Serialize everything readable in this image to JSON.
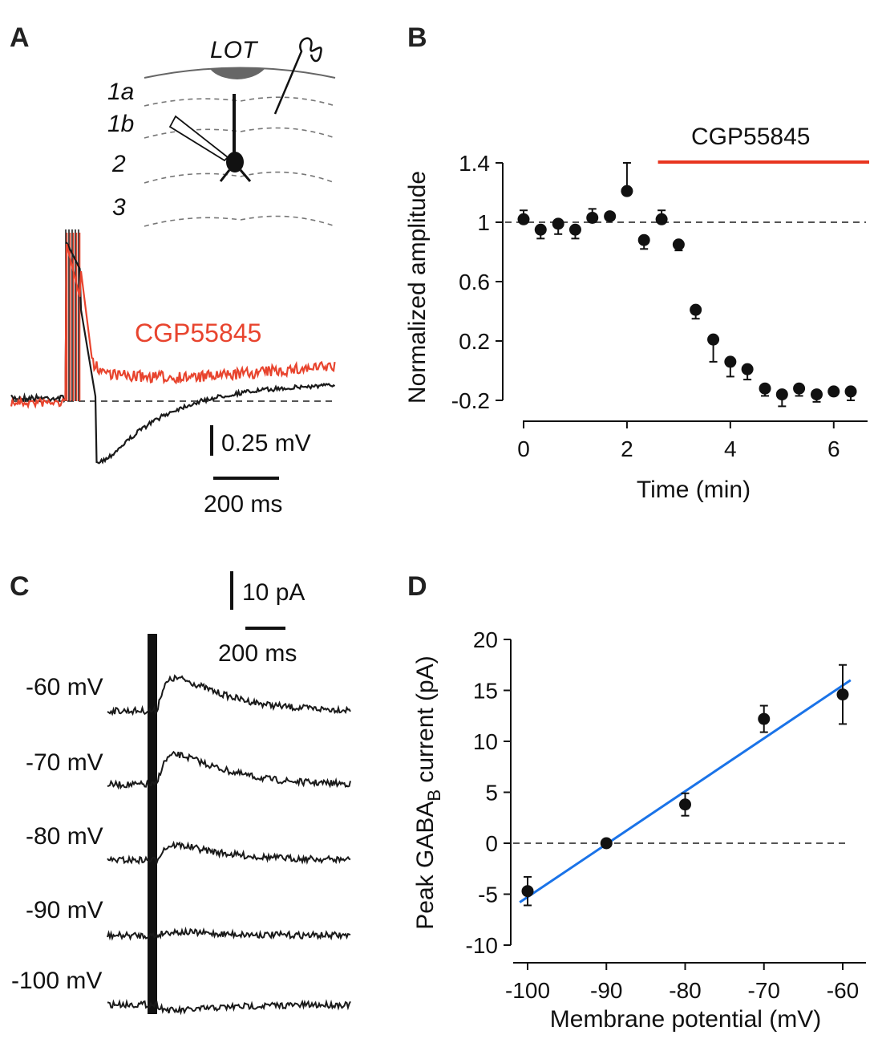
{
  "panels": {
    "a": {
      "letter": "A",
      "layers": {
        "lot": "LOT",
        "l1a": "1a",
        "l1b": "1b",
        "l2": "2",
        "l3": "3"
      },
      "drug_label": "CGP55845",
      "scale_voltage": "0.25 mV",
      "scale_time": "200 ms",
      "colors": {
        "control": "#1a1a1a",
        "drug": "#e8442e"
      }
    },
    "b": {
      "letter": "B",
      "drug_bar_label": "CGP55845",
      "drug_color": "#e8351f"
    },
    "c": {
      "letter": "C",
      "scale_current": "10 pA",
      "scale_time": "200 ms",
      "trace_labels": [
        "-60 mV",
        "-70 mV",
        "-80 mV",
        "-90 mV",
        "-100 mV"
      ]
    },
    "d": {
      "letter": "D",
      "fit_color": "#1a73e8"
    }
  },
  "chart_data": [
    {
      "panel": "B",
      "type": "scatter",
      "xlabel": "Time (min)",
      "ylabel": "Normalized amplitude",
      "xlim": [
        0,
        6.5
      ],
      "ylim": [
        -0.2,
        1.4
      ],
      "xticks": [
        0,
        2,
        4,
        6
      ],
      "xtick_labels": [
        "0",
        "2",
        "4",
        "6"
      ],
      "yticks": [
        -0.2,
        0.2,
        0.6,
        1,
        1.4
      ],
      "ytick_labels": [
        "-0.2",
        "0.2",
        "0.6",
        "1",
        "1.4"
      ],
      "reference_line": 1.0,
      "drug_application_start_min": 2.6,
      "x": [
        0,
        0.33,
        0.67,
        1.0,
        1.33,
        1.67,
        2.0,
        2.33,
        2.67,
        3.0,
        3.33,
        3.67,
        4.0,
        4.33,
        4.67,
        5.0,
        5.33,
        5.67,
        6.0,
        6.33
      ],
      "y": [
        1.02,
        0.95,
        0.99,
        0.95,
        1.03,
        1.04,
        1.21,
        0.88,
        1.02,
        0.85,
        0.41,
        0.21,
        0.06,
        0.01,
        -0.12,
        -0.16,
        -0.12,
        -0.16,
        -0.14,
        -0.14
      ],
      "err": [
        0.06,
        0.06,
        0.07,
        0.06,
        0.06,
        0.02,
        0.19,
        0.06,
        0.06,
        0.04,
        0.06,
        0.15,
        0.1,
        0.07,
        0.05,
        0.08,
        0.05,
        0.05,
        0.02,
        0.06
      ]
    },
    {
      "panel": "D",
      "type": "scatter",
      "xlabel": "Membrane potential (mV)",
      "ylabel_main": "Peak GABA",
      "ylabel_sub": "B",
      "ylabel_tail": " current (pA)",
      "xlim": [
        -102,
        -58
      ],
      "ylim": [
        -10,
        20
      ],
      "xticks": [
        -100,
        -90,
        -80,
        -70,
        -60
      ],
      "xtick_labels": [
        "-100",
        "-90",
        "-80",
        "-70",
        "-60"
      ],
      "yticks": [
        -10,
        -5,
        0,
        5,
        10,
        15,
        20
      ],
      "ytick_labels": [
        "-10",
        "-5",
        "0",
        "5",
        "10",
        "15",
        "20"
      ],
      "reference_line": 0,
      "x": [
        -100,
        -90,
        -80,
        -70,
        -60
      ],
      "y": [
        -4.7,
        0.0,
        3.8,
        12.2,
        14.6
      ],
      "err": [
        1.4,
        0.2,
        1.1,
        1.3,
        2.9
      ],
      "fit": {
        "x": [
          -101,
          -59
        ],
        "y": [
          -5.8,
          16.0
        ]
      }
    }
  ]
}
